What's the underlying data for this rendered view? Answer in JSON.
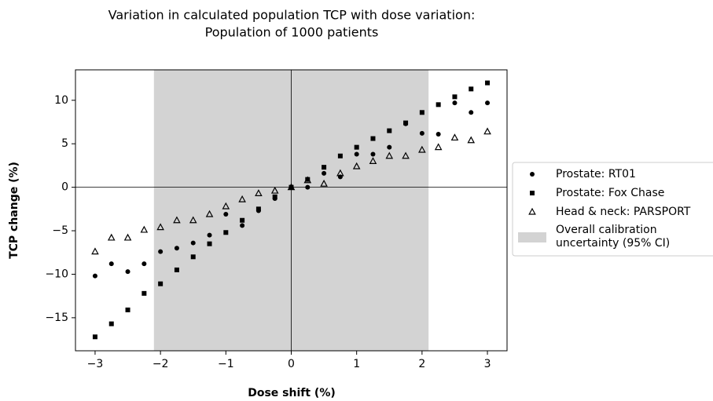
{
  "chart_data": {
    "type": "scatter",
    "title": [
      "Variation in calculated population TCP with dose variation:",
      "Population of 1000 patients"
    ],
    "x_label": "Dose shift (%)",
    "y_label": "TCP change (%)",
    "xlim": [
      -3.3,
      3.3
    ],
    "ylim": [
      -18.8,
      13.5
    ],
    "xticks": [
      {
        "value": -3,
        "label": "−3"
      },
      {
        "value": -2,
        "label": "−2"
      },
      {
        "value": -1,
        "label": "−1"
      },
      0,
      1,
      2,
      3
    ],
    "yticks": [
      {
        "value": -15,
        "label": "−15"
      },
      {
        "value": -10,
        "label": "−10"
      },
      {
        "value": -5,
        "label": "−5"
      },
      0,
      5,
      10
    ],
    "reference_lines": {
      "x": 0,
      "y": 0
    },
    "band": {
      "name": [
        "Overall calibration",
        "uncertainty (95% CI)"
      ],
      "range": [
        -2.1,
        2.1
      ],
      "color": "#d3d3d3"
    },
    "legend": "right",
    "x": [
      -3,
      -2.75,
      -2.5,
      -2.25,
      -2,
      -1.75,
      -1.5,
      -1.25,
      -1,
      -0.75,
      -0.5,
      -0.25,
      0,
      0.25,
      0.5,
      0.75,
      1,
      1.25,
      1.5,
      1.75,
      2,
      2.25,
      2.5,
      2.75,
      3
    ],
    "series": [
      {
        "name": "Prostate: RT01",
        "color": "#000000",
        "marker": "circle",
        "values": [
          -10.2,
          -8.8,
          -9.7,
          -8.8,
          -7.4,
          -7.0,
          -6.4,
          -5.5,
          -3.1,
          -4.4,
          -2.7,
          -1.3,
          0,
          0,
          1.6,
          1.2,
          3.8,
          3.8,
          4.6,
          7.3,
          6.2,
          6.1,
          9.7,
          8.6,
          9.7
        ]
      },
      {
        "name": "Prostate: Fox Chase",
        "color": "#000000",
        "marker": "square",
        "values": [
          -17.2,
          -15.7,
          -14.1,
          -12.2,
          -11.1,
          -9.5,
          -8.0,
          -6.5,
          -5.2,
          -3.8,
          -2.5,
          -1.1,
          0,
          0.9,
          2.3,
          3.6,
          4.6,
          5.6,
          6.5,
          7.4,
          8.6,
          9.5,
          10.4,
          11.3,
          12.0
        ]
      },
      {
        "name": "Head & neck: PARSPORT",
        "color": "#000000",
        "marker": "triangle",
        "values": [
          -7.4,
          -5.8,
          -5.8,
          -4.9,
          -4.6,
          -3.8,
          -3.8,
          -3.1,
          -2.2,
          -1.4,
          -0.7,
          -0.4,
          0,
          0.8,
          0.4,
          1.6,
          2.4,
          3.0,
          3.6,
          3.6,
          4.3,
          4.6,
          5.7,
          5.4,
          6.4
        ]
      }
    ]
  }
}
